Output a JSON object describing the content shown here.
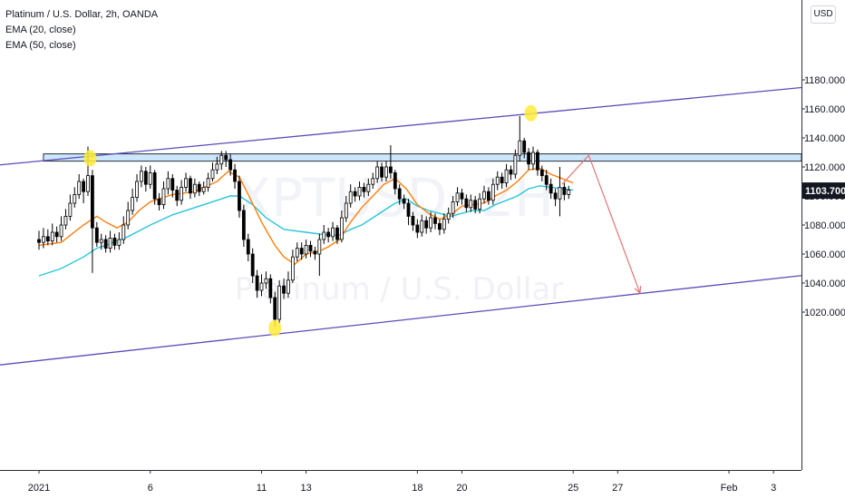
{
  "legend": {
    "symbol": "Platinum / U.S. Dollar, 2h, OANDA",
    "ema20": "EMA (20, close)",
    "ema50": "EMA (50, close)"
  },
  "currency_button": "USD",
  "watermark": {
    "ticker": "XPTUSD, 2H",
    "name": "Platinum / U.S. Dollar"
  },
  "colors": {
    "up_candle": "#ffffff",
    "down_candle": "#000000",
    "candle_border": "#000000",
    "ema20": "#ff7f0e",
    "ema50": "#26c6da",
    "channel": "#5c4bb8",
    "zone_fill": "#bbdefb",
    "zone_border": "#2a2e39",
    "arrow": "#e57373",
    "marker": "#ffeb3b",
    "price_tag": "#131722"
  },
  "chart_data": {
    "type": "candlestick",
    "instrument": "Platinum / U.S. Dollar, 2h, OANDA",
    "ylim": [
      1000,
      1190
    ],
    "y_ticks": [
      1020,
      1040,
      1060,
      1080,
      1100,
      1120,
      1140,
      1160,
      1180
    ],
    "y_tick_labels": [
      "1020.000",
      "1040.000",
      "1060.000",
      "1080.000",
      "1100.000",
      "1120.000",
      "1140.000",
      "1160.000",
      "1180.000"
    ],
    "x_ticks": [
      {
        "label": "2021",
        "day": 0
      },
      {
        "label": "6",
        "day": 5
      },
      {
        "label": "11",
        "day": 10
      },
      {
        "label": "13",
        "day": 12
      },
      {
        "label": "18",
        "day": 17
      },
      {
        "label": "20",
        "day": 19
      },
      {
        "label": "25",
        "day": 24
      },
      {
        "label": "27",
        "day": 26
      },
      {
        "label": "Feb",
        "day": 31
      },
      {
        "label": "3",
        "day": 33
      }
    ],
    "last_price": 1103.7,
    "last_price_label": "1103.700",
    "resistance_zone": [
      1124,
      1129
    ],
    "channel_upper": [
      [
        0,
        1124
      ],
      [
        36.5,
        1178
      ]
    ],
    "channel_lower": [
      [
        9,
        1002
      ],
      [
        36.5,
        1049
      ]
    ],
    "projection": [
      [
        23.5,
        1108
      ],
      [
        24.7,
        1128
      ],
      [
        27,
        1033
      ]
    ],
    "markers": [
      [
        2.3,
        1126
      ],
      [
        10.6,
        1009
      ],
      [
        22.1,
        1157
      ]
    ],
    "candles": [
      [
        0.0,
        1070,
        1068,
        1076,
        1063
      ],
      [
        0.2,
        1068,
        1072,
        1078,
        1064
      ],
      [
        0.4,
        1072,
        1069,
        1077,
        1066
      ],
      [
        0.6,
        1069,
        1075,
        1081,
        1066
      ],
      [
        0.8,
        1075,
        1072,
        1079,
        1068
      ],
      [
        1.0,
        1072,
        1080,
        1086,
        1069
      ],
      [
        1.2,
        1080,
        1086,
        1091,
        1077
      ],
      [
        1.4,
        1086,
        1095,
        1101,
        1083
      ],
      [
        1.6,
        1095,
        1101,
        1106,
        1092
      ],
      [
        1.8,
        1101,
        1110,
        1115,
        1098
      ],
      [
        2.0,
        1110,
        1103,
        1112,
        1095
      ],
      [
        2.2,
        1103,
        1114,
        1134,
        1100
      ],
      [
        2.4,
        1114,
        1078,
        1118,
        1047
      ],
      [
        2.6,
        1078,
        1068,
        1082,
        1065
      ],
      [
        2.8,
        1068,
        1070,
        1074,
        1063
      ],
      [
        3.0,
        1070,
        1064,
        1073,
        1061
      ],
      [
        3.2,
        1064,
        1071,
        1076,
        1061
      ],
      [
        3.4,
        1071,
        1066,
        1074,
        1063
      ],
      [
        3.6,
        1066,
        1070,
        1075,
        1063
      ],
      [
        3.8,
        1070,
        1080,
        1086,
        1067
      ],
      [
        4.0,
        1080,
        1090,
        1096,
        1077
      ],
      [
        4.2,
        1090,
        1099,
        1105,
        1087
      ],
      [
        4.4,
        1099,
        1110,
        1115,
        1096
      ],
      [
        4.6,
        1110,
        1117,
        1121,
        1106
      ],
      [
        4.8,
        1117,
        1108,
        1120,
        1103
      ],
      [
        5.0,
        1108,
        1116,
        1121,
        1105
      ],
      [
        5.2,
        1116,
        1098,
        1118,
        1094
      ],
      [
        5.4,
        1098,
        1094,
        1102,
        1090
      ],
      [
        5.6,
        1094,
        1105,
        1110,
        1091
      ],
      [
        5.8,
        1105,
        1112,
        1117,
        1101
      ],
      [
        6.0,
        1112,
        1104,
        1115,
        1099
      ],
      [
        6.2,
        1104,
        1097,
        1107,
        1093
      ],
      [
        6.4,
        1097,
        1106,
        1111,
        1094
      ],
      [
        6.6,
        1106,
        1112,
        1116,
        1103
      ],
      [
        6.8,
        1112,
        1102,
        1114,
        1098
      ],
      [
        7.0,
        1102,
        1108,
        1112,
        1099
      ],
      [
        7.2,
        1108,
        1103,
        1110,
        1100
      ],
      [
        7.4,
        1103,
        1106,
        1110,
        1101
      ],
      [
        7.6,
        1106,
        1112,
        1116,
        1103
      ],
      [
        7.8,
        1112,
        1118,
        1123,
        1110
      ],
      [
        8.0,
        1118,
        1122,
        1127,
        1115
      ],
      [
        8.2,
        1122,
        1128,
        1131,
        1118
      ],
      [
        8.4,
        1128,
        1125,
        1131,
        1120
      ],
      [
        8.6,
        1125,
        1118,
        1129,
        1114
      ],
      [
        8.8,
        1118,
        1110,
        1122,
        1105
      ],
      [
        9.0,
        1110,
        1090,
        1114,
        1085
      ],
      [
        9.2,
        1090,
        1070,
        1094,
        1065
      ],
      [
        9.4,
        1070,
        1060,
        1074,
        1055
      ],
      [
        9.6,
        1060,
        1045,
        1064,
        1040
      ],
      [
        9.8,
        1045,
        1035,
        1049,
        1030
      ],
      [
        10.0,
        1035,
        1040,
        1046,
        1031
      ],
      [
        10.2,
        1040,
        1043,
        1048,
        1036
      ],
      [
        10.4,
        1043,
        1030,
        1046,
        1026
      ],
      [
        10.6,
        1030,
        1015,
        1034,
        1010
      ],
      [
        10.8,
        1015,
        1038,
        1042,
        1012
      ],
      [
        11.0,
        1038,
        1033,
        1043,
        1029
      ],
      [
        11.2,
        1033,
        1042,
        1048,
        1030
      ],
      [
        11.4,
        1042,
        1058,
        1063,
        1040
      ],
      [
        11.6,
        1058,
        1064,
        1068,
        1055
      ],
      [
        11.8,
        1064,
        1060,
        1068,
        1056
      ],
      [
        12.0,
        1060,
        1066,
        1070,
        1057
      ],
      [
        12.2,
        1066,
        1062,
        1069,
        1058
      ],
      [
        12.4,
        1062,
        1060,
        1065,
        1056
      ],
      [
        12.6,
        1060,
        1070,
        1074,
        1045
      ],
      [
        12.8,
        1070,
        1075,
        1080,
        1067
      ],
      [
        13.0,
        1075,
        1072,
        1078,
        1068
      ],
      [
        13.2,
        1072,
        1078,
        1082,
        1069
      ],
      [
        13.4,
        1078,
        1070,
        1080,
        1067
      ],
      [
        13.6,
        1070,
        1085,
        1090,
        1068
      ],
      [
        13.8,
        1085,
        1095,
        1100,
        1082
      ],
      [
        14.0,
        1095,
        1103,
        1108,
        1092
      ],
      [
        14.2,
        1103,
        1100,
        1106,
        1096
      ],
      [
        14.4,
        1100,
        1106,
        1110,
        1097
      ],
      [
        14.6,
        1106,
        1103,
        1109,
        1099
      ],
      [
        14.8,
        1103,
        1108,
        1112,
        1100
      ],
      [
        15.0,
        1108,
        1112,
        1116,
        1105
      ],
      [
        15.2,
        1112,
        1120,
        1124,
        1109
      ],
      [
        15.4,
        1120,
        1113,
        1123,
        1110
      ],
      [
        15.6,
        1113,
        1120,
        1124,
        1110
      ],
      [
        15.8,
        1120,
        1116,
        1135,
        1112
      ],
      [
        16.0,
        1116,
        1105,
        1118,
        1101
      ],
      [
        16.2,
        1105,
        1098,
        1108,
        1094
      ],
      [
        16.4,
        1098,
        1095,
        1101,
        1091
      ],
      [
        16.6,
        1095,
        1086,
        1098,
        1080
      ],
      [
        16.8,
        1086,
        1080,
        1089,
        1076
      ],
      [
        17.0,
        1080,
        1075,
        1084,
        1071
      ],
      [
        17.2,
        1075,
        1083,
        1087,
        1072
      ],
      [
        17.4,
        1083,
        1078,
        1086,
        1074
      ],
      [
        17.6,
        1078,
        1085,
        1089,
        1075
      ],
      [
        17.8,
        1085,
        1081,
        1088,
        1077
      ],
      [
        18.0,
        1081,
        1077,
        1084,
        1073
      ],
      [
        18.2,
        1077,
        1084,
        1088,
        1074
      ],
      [
        18.4,
        1084,
        1088,
        1092,
        1081
      ],
      [
        18.6,
        1088,
        1096,
        1100,
        1085
      ],
      [
        18.8,
        1096,
        1102,
        1106,
        1093
      ],
      [
        19.0,
        1102,
        1098,
        1105,
        1094
      ],
      [
        19.2,
        1098,
        1092,
        1101,
        1089
      ],
      [
        19.4,
        1092,
        1097,
        1101,
        1089
      ],
      [
        19.6,
        1097,
        1091,
        1100,
        1088
      ],
      [
        19.8,
        1091,
        1098,
        1102,
        1088
      ],
      [
        20.0,
        1098,
        1103,
        1107,
        1095
      ],
      [
        20.2,
        1103,
        1097,
        1106,
        1094
      ],
      [
        20.4,
        1097,
        1108,
        1112,
        1094
      ],
      [
        20.6,
        1108,
        1113,
        1117,
        1104
      ],
      [
        20.8,
        1113,
        1109,
        1116,
        1105
      ],
      [
        21.0,
        1109,
        1118,
        1122,
        1106
      ],
      [
        21.2,
        1118,
        1115,
        1121,
        1111
      ],
      [
        21.4,
        1115,
        1128,
        1132,
        1112
      ],
      [
        21.6,
        1128,
        1138,
        1155,
        1124
      ],
      [
        21.8,
        1138,
        1130,
        1140,
        1126
      ],
      [
        22.0,
        1130,
        1122,
        1133,
        1118
      ],
      [
        22.2,
        1122,
        1130,
        1134,
        1118
      ],
      [
        22.4,
        1130,
        1118,
        1132,
        1114
      ],
      [
        22.6,
        1118,
        1114,
        1121,
        1110
      ],
      [
        22.8,
        1114,
        1108,
        1118,
        1104
      ],
      [
        23.0,
        1108,
        1102,
        1112,
        1098
      ],
      [
        23.2,
        1102,
        1098,
        1105,
        1093
      ],
      [
        23.4,
        1098,
        1106,
        1120,
        1086
      ],
      [
        23.6,
        1106,
        1101,
        1109,
        1097
      ],
      [
        23.8,
        1101,
        1104,
        1107,
        1098
      ]
    ],
    "ema20_points": [
      [
        0.0,
        1066
      ],
      [
        1.0,
        1068
      ],
      [
        2.0,
        1080
      ],
      [
        2.6,
        1086
      ],
      [
        3.0,
        1082
      ],
      [
        3.5,
        1078
      ],
      [
        4.0,
        1082
      ],
      [
        4.5,
        1090
      ],
      [
        5.0,
        1096
      ],
      [
        6.0,
        1101
      ],
      [
        7.0,
        1103
      ],
      [
        8.0,
        1110
      ],
      [
        8.5,
        1117
      ],
      [
        9.0,
        1113
      ],
      [
        9.4,
        1101
      ],
      [
        10.0,
        1082
      ],
      [
        10.6,
        1066
      ],
      [
        11.0,
        1058
      ],
      [
        11.5,
        1053
      ],
      [
        12.0,
        1060
      ],
      [
        12.6,
        1062
      ],
      [
        13.0,
        1065
      ],
      [
        13.5,
        1070
      ],
      [
        14.0,
        1082
      ],
      [
        14.5,
        1092
      ],
      [
        15.0,
        1100
      ],
      [
        15.5,
        1108
      ],
      [
        16.0,
        1112
      ],
      [
        16.5,
        1105
      ],
      [
        17.0,
        1094
      ],
      [
        17.5,
        1088
      ],
      [
        18.0,
        1084
      ],
      [
        18.5,
        1087
      ],
      [
        19.0,
        1093
      ],
      [
        19.5,
        1094
      ],
      [
        20.0,
        1095
      ],
      [
        20.5,
        1100
      ],
      [
        21.0,
        1104
      ],
      [
        21.5,
        1110
      ],
      [
        22.0,
        1118
      ],
      [
        22.5,
        1119
      ],
      [
        23.0,
        1115
      ],
      [
        23.5,
        1112
      ],
      [
        24.0,
        1109
      ]
    ],
    "ema50_points": [
      [
        0.0,
        1045
      ],
      [
        1.0,
        1050
      ],
      [
        2.0,
        1058
      ],
      [
        2.6,
        1064
      ],
      [
        3.0,
        1066
      ],
      [
        4.0,
        1072
      ],
      [
        5.0,
        1080
      ],
      [
        6.0,
        1087
      ],
      [
        7.0,
        1092
      ],
      [
        8.0,
        1097
      ],
      [
        8.6,
        1100
      ],
      [
        9.0,
        1100
      ],
      [
        9.6,
        1094
      ],
      [
        10.2,
        1085
      ],
      [
        11.0,
        1077
      ],
      [
        12.0,
        1075
      ],
      [
        13.0,
        1073
      ],
      [
        13.5,
        1073
      ],
      [
        14.0,
        1077
      ],
      [
        14.5,
        1080
      ],
      [
        15.0,
        1085
      ],
      [
        15.5,
        1090
      ],
      [
        16.0,
        1095
      ],
      [
        16.5,
        1098
      ],
      [
        17.0,
        1093
      ],
      [
        17.5,
        1090
      ],
      [
        18.0,
        1088
      ],
      [
        18.5,
        1086
      ],
      [
        19.0,
        1088
      ],
      [
        19.5,
        1090
      ],
      [
        20.0,
        1090
      ],
      [
        20.5,
        1094
      ],
      [
        21.0,
        1097
      ],
      [
        21.5,
        1100
      ],
      [
        22.0,
        1105
      ],
      [
        22.5,
        1107
      ],
      [
        23.0,
        1106
      ],
      [
        23.5,
        1105
      ],
      [
        24.0,
        1104
      ]
    ]
  }
}
